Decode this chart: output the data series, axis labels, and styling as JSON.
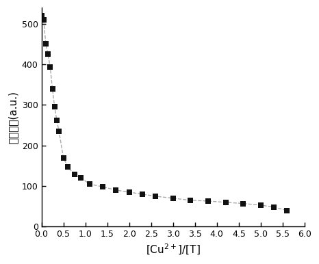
{
  "x": [
    0.0,
    0.05,
    0.1,
    0.15,
    0.2,
    0.25,
    0.3,
    0.35,
    0.4,
    0.5,
    0.6,
    0.75,
    0.9,
    1.1,
    1.4,
    1.7,
    2.0,
    2.3,
    2.6,
    3.0,
    3.4,
    3.8,
    4.2,
    4.6,
    5.0,
    5.3,
    5.6
  ],
  "y": [
    520,
    510,
    450,
    425,
    393,
    340,
    295,
    262,
    235,
    170,
    148,
    128,
    120,
    105,
    98,
    90,
    85,
    80,
    75,
    70,
    65,
    63,
    60,
    57,
    53,
    48,
    40
  ],
  "xlabel": "[Cu$^{2+}$]/[T]",
  "ylabel_chinese": "荧光强度",
  "ylabel_units": "(a.u.)",
  "xlim": [
    0,
    6.0
  ],
  "ylim": [
    0,
    540
  ],
  "xticks": [
    0.0,
    0.5,
    1.0,
    1.5,
    2.0,
    2.5,
    3.0,
    3.5,
    4.0,
    4.5,
    5.0,
    5.5,
    6.0
  ],
  "yticks": [
    0,
    100,
    200,
    300,
    400,
    500
  ],
  "line_color": "#aaaaaa",
  "marker_color": "#111111",
  "marker_size": 6,
  "line_style": "--",
  "line_width": 1.0
}
